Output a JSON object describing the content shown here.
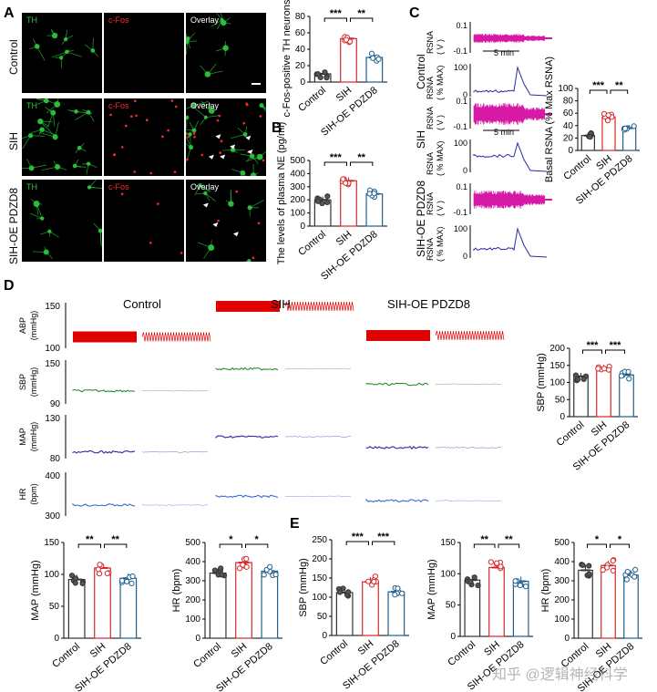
{
  "panel_letters": {
    "A": "A",
    "B": "B",
    "C": "C",
    "D": "D",
    "E": "E"
  },
  "colors": {
    "control": "#333333",
    "sih": "#d62728",
    "pdzd8": "#1f5f8b",
    "th": "#2ecc40",
    "cfos": "#ff2a2a",
    "rsna": "#d61aa6",
    "rsna_pct": "#2a2aa0",
    "abp": "#e00000",
    "sbp": "#2a8a2a",
    "map": "#2a2aa0",
    "hr": "#3a6ad8"
  },
  "groups": [
    "Control",
    "SIH",
    "SIH-OE PDZD8"
  ],
  "micrographs": {
    "columns": [
      "TH",
      "c-Fos",
      "Overlay"
    ]
  },
  "chart_data": [
    {
      "id": "A_bar",
      "type": "bar",
      "categories": [
        "Control",
        "SIH",
        "SIH-OE PDZD8"
      ],
      "values": [
        10,
        53,
        30
      ],
      "ylabel": "c-Fos-positive TH neurons (%)",
      "ylim": [
        0,
        80
      ],
      "yticks": [
        0,
        20,
        40,
        60,
        80
      ],
      "sig": [
        "***",
        "**"
      ]
    },
    {
      "id": "B_bar",
      "type": "bar",
      "categories": [
        "Control",
        "SIH",
        "SIH-OE PDZD8"
      ],
      "values": [
        200,
        345,
        245
      ],
      "ylabel": "The levels of plasma NE (pg/ml)",
      "ylim": [
        0,
        500
      ],
      "yticks": [
        0,
        100,
        200,
        300,
        400,
        500
      ],
      "sig": [
        "***",
        "**"
      ]
    },
    {
      "id": "C_bar",
      "type": "bar",
      "categories": [
        "Control",
        "SIH",
        "SIH-OE PDZD8"
      ],
      "values": [
        24,
        54,
        36
      ],
      "ylabel": "Basal RSNA (% Max RSNA)",
      "ylim": [
        0,
        100
      ],
      "yticks": [
        0,
        20,
        40,
        60,
        80,
        100
      ],
      "sig": [
        "***",
        "**"
      ]
    },
    {
      "id": "D_sbp",
      "type": "bar",
      "categories": [
        "Control",
        "SIH",
        "SIH-OE PDZD8"
      ],
      "values": [
        118,
        142,
        122
      ],
      "ylabel": "SBP (mmHg)",
      "ylim": [
        0,
        200
      ],
      "yticks": [
        0,
        50,
        100,
        150,
        200
      ],
      "sig": [
        "***",
        "***"
      ]
    },
    {
      "id": "D_map",
      "type": "bar",
      "categories": [
        "Control",
        "SIH",
        "SIH-OE PDZD8"
      ],
      "values": [
        92,
        110,
        94
      ],
      "ylabel": "MAP (mmHg)",
      "ylim": [
        0,
        150
      ],
      "yticks": [
        0,
        50,
        100,
        150
      ],
      "sig": [
        "**",
        "**"
      ]
    },
    {
      "id": "D_hr",
      "type": "bar",
      "categories": [
        "Control",
        "SIH",
        "SIH-OE PDZD8"
      ],
      "values": [
        340,
        395,
        350
      ],
      "ylabel": "HR (bpm)",
      "ylim": [
        0,
        500
      ],
      "yticks": [
        0,
        100,
        200,
        300,
        400,
        500
      ],
      "sig": [
        "*",
        "*"
      ]
    },
    {
      "id": "E_sbp",
      "type": "bar",
      "categories": [
        "Control",
        "SIH",
        "SIH-OE PDZD8"
      ],
      "values": [
        112,
        140,
        114
      ],
      "ylabel": "SBP (mmHg)",
      "ylim": [
        0,
        250
      ],
      "yticks": [
        0,
        50,
        100,
        150,
        200,
        250
      ],
      "sig": [
        "***",
        "***"
      ]
    },
    {
      "id": "E_map",
      "type": "bar",
      "categories": [
        "Control",
        "SIH",
        "SIH-OE PDZD8"
      ],
      "values": [
        90,
        110,
        88
      ],
      "ylabel": "MAP (mmHg)",
      "ylim": [
        0,
        150
      ],
      "yticks": [
        0,
        50,
        100,
        150
      ],
      "sig": [
        "**",
        "**"
      ]
    },
    {
      "id": "E_hr",
      "type": "bar",
      "categories": [
        "Control",
        "SIH",
        "SIH-OE PDZD8"
      ],
      "values": [
        355,
        380,
        330
      ],
      "ylabel": "HR (bpm)",
      "ylim": [
        0,
        500
      ],
      "yticks": [
        0,
        100,
        200,
        300,
        400,
        500
      ],
      "sig": [
        "*",
        "*"
      ]
    }
  ],
  "traces_C": {
    "rsna_label": "RSNA",
    "rsna_unit": "( V )",
    "pct_label": "RSNA",
    "pct_unit": "( % MAX)",
    "ticks_v": [
      "0.1",
      "-0.1"
    ],
    "ticks_pct": [
      "100",
      "0"
    ],
    "scale": "5 min"
  },
  "traces_D": {
    "abp": {
      "label": "ABP",
      "unit": "(mmHg)",
      "ticks": [
        "150",
        "100"
      ]
    },
    "sbp": {
      "label": "SBP",
      "unit": "(mmHg)",
      "ticks": [
        "150",
        "90"
      ]
    },
    "map": {
      "label": "MAP",
      "unit": "(mmHg)",
      "ticks": [
        "130",
        "80"
      ]
    },
    "hr": {
      "label": "HR",
      "unit": "(bpm)",
      "ticks": [
        "400",
        "300"
      ]
    }
  },
  "watermark": "知乎 @逻辑神经科学"
}
